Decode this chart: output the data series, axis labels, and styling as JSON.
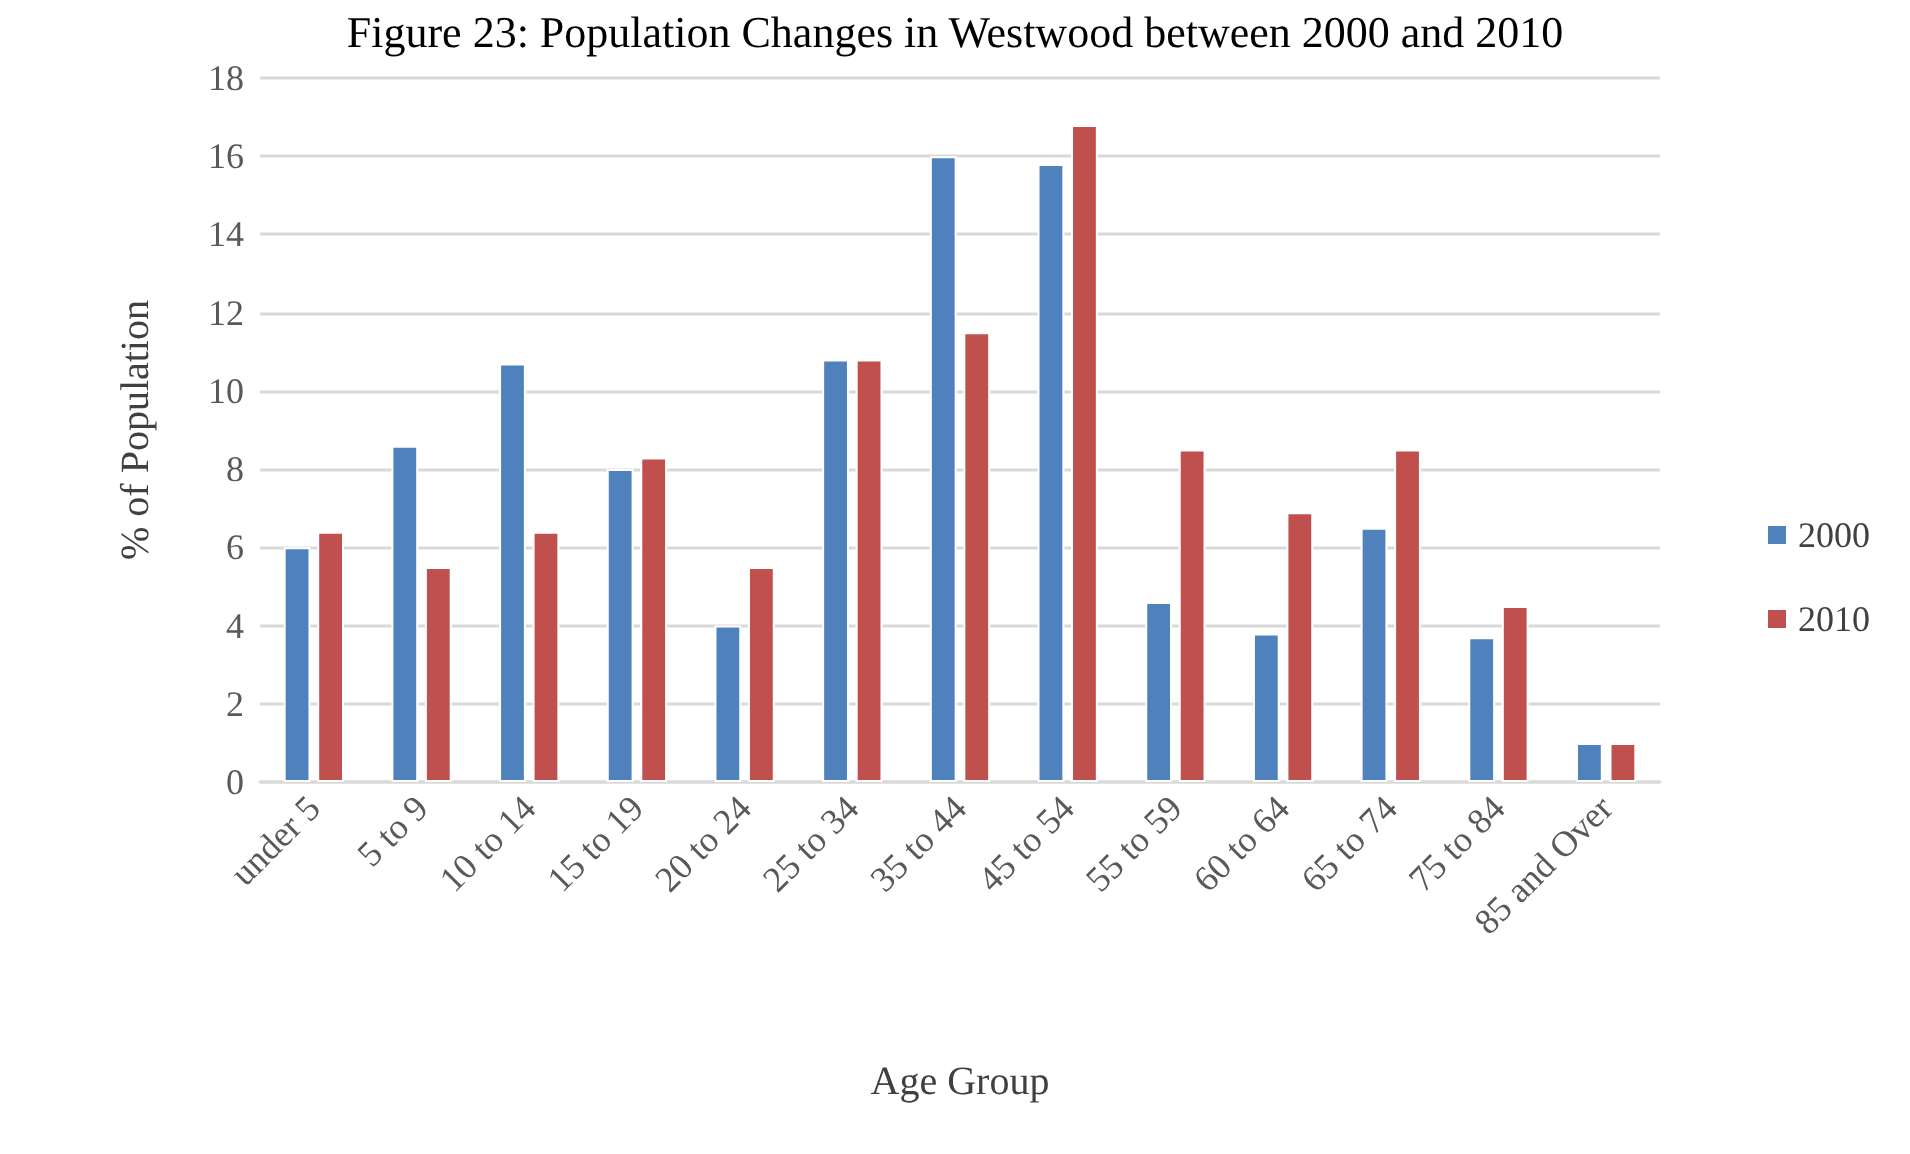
{
  "chart_data": {
    "type": "bar",
    "title": "Figure 23: Population Changes in Westwood between 2000 and 2010",
    "xlabel": "Age Group",
    "ylabel": "% of Population",
    "categories": [
      "under 5",
      "5 to 9",
      "10 to 14",
      "15 to 19",
      "20 to 24",
      "25 to 34",
      "35 to 44",
      "45 to 54",
      "55 to 59",
      "60 to 64",
      "65 to 74",
      "75 to 84",
      "85 and Over"
    ],
    "series": [
      {
        "name": "2000",
        "color": "#4f81bd",
        "values": [
          6.0,
          8.6,
          10.7,
          8.0,
          4.0,
          10.8,
          16.0,
          15.8,
          4.6,
          3.8,
          6.5,
          3.7,
          1.0
        ]
      },
      {
        "name": "2010",
        "color": "#c0504d",
        "values": [
          6.4,
          5.5,
          6.4,
          8.3,
          5.5,
          10.8,
          11.5,
          16.8,
          8.5,
          6.9,
          8.5,
          4.5,
          1.0
        ]
      }
    ],
    "ylim": [
      0,
      18
    ],
    "yticks": [
      0,
      2,
      4,
      6,
      8,
      10,
      12,
      14,
      16,
      18
    ],
    "grid": "y",
    "legend": "right"
  }
}
